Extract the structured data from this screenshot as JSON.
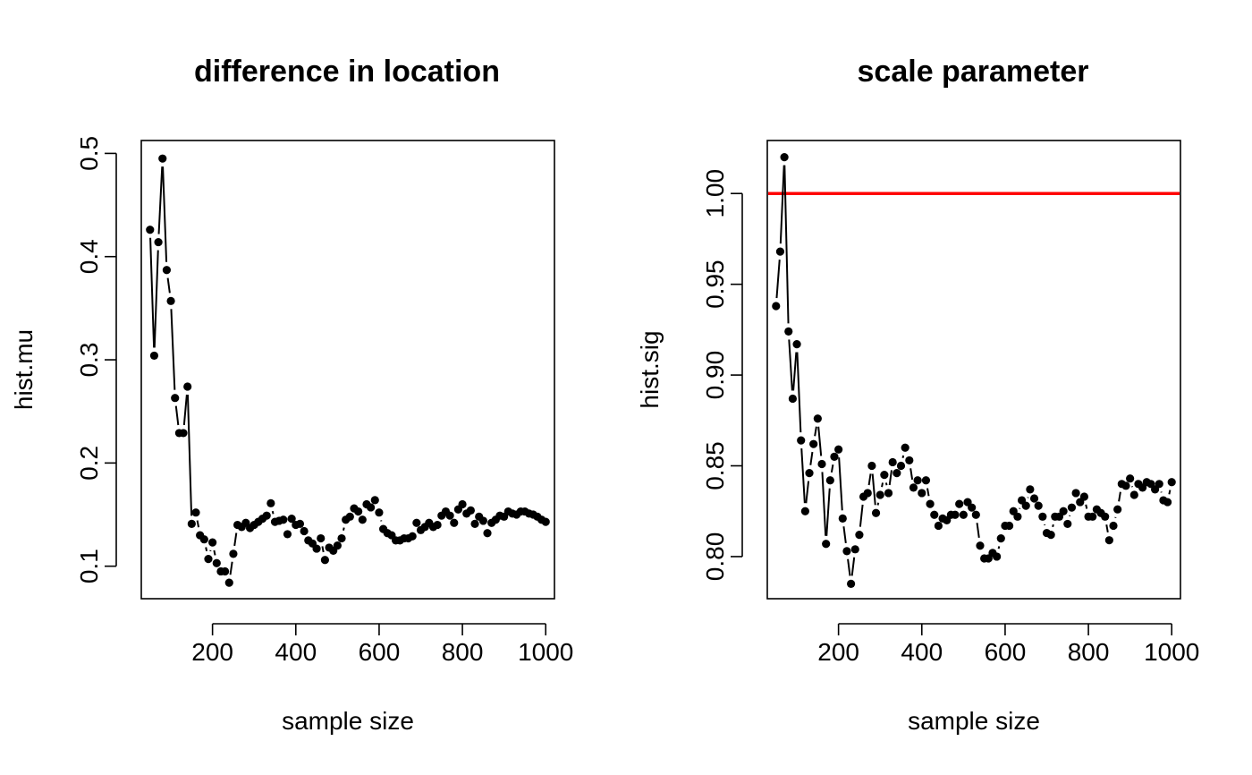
{
  "chart_data": [
    {
      "type": "line",
      "title": "difference in location",
      "xlabel": "sample size",
      "ylabel": "hist.mu",
      "xlim": [
        29,
        1021
      ],
      "ylim": [
        0.0685,
        0.5125
      ],
      "xticks": [
        200,
        400,
        600,
        800,
        1000
      ],
      "yticks": [
        0.1,
        0.2,
        0.3,
        0.4,
        0.5
      ],
      "xtick_labels": [
        "200",
        "400",
        "600",
        "800",
        "1000"
      ],
      "ytick_labels": [
        "0.1",
        "0.2",
        "0.3",
        "0.4",
        "0.5"
      ],
      "grid": false,
      "legend": "none",
      "line_style": "both points and lines",
      "color": "#000000",
      "reference_line": null,
      "series": [
        {
          "x": [
            50,
            60,
            70,
            80,
            90,
            100,
            110,
            120,
            130,
            140,
            150,
            160,
            170,
            180,
            190,
            200,
            210,
            220,
            230,
            240,
            250,
            260,
            270,
            280,
            290,
            300,
            310,
            320,
            330,
            340,
            350,
            360,
            370,
            380,
            390,
            400,
            410,
            420,
            430,
            440,
            450,
            460,
            470,
            480,
            490,
            500,
            510,
            520,
            530,
            540,
            550,
            560,
            570,
            580,
            590,
            600,
            610,
            620,
            630,
            640,
            650,
            660,
            670,
            680,
            690,
            700,
            710,
            720,
            730,
            740,
            750,
            760,
            770,
            780,
            790,
            800,
            810,
            820,
            830,
            840,
            850,
            860,
            870,
            880,
            890,
            900,
            910,
            920,
            930,
            940,
            950,
            960,
            970,
            980,
            990,
            1000
          ],
          "y": [
            0.426,
            0.304,
            0.414,
            0.495,
            0.387,
            0.357,
            0.263,
            0.229,
            0.229,
            0.274,
            0.141,
            0.152,
            0.13,
            0.126,
            0.107,
            0.123,
            0.103,
            0.095,
            0.095,
            0.084,
            0.112,
            0.14,
            0.138,
            0.142,
            0.137,
            0.14,
            0.143,
            0.146,
            0.149,
            0.161,
            0.143,
            0.144,
            0.145,
            0.131,
            0.146,
            0.14,
            0.141,
            0.134,
            0.125,
            0.122,
            0.117,
            0.127,
            0.106,
            0.118,
            0.115,
            0.12,
            0.127,
            0.145,
            0.148,
            0.156,
            0.153,
            0.145,
            0.16,
            0.157,
            0.164,
            0.152,
            0.136,
            0.132,
            0.13,
            0.125,
            0.125,
            0.127,
            0.127,
            0.129,
            0.142,
            0.135,
            0.138,
            0.142,
            0.138,
            0.14,
            0.149,
            0.153,
            0.149,
            0.142,
            0.155,
            0.16,
            0.151,
            0.154,
            0.141,
            0.148,
            0.144,
            0.132,
            0.142,
            0.145,
            0.149,
            0.148,
            0.153,
            0.151,
            0.15,
            0.153,
            0.153,
            0.151,
            0.15,
            0.148,
            0.145,
            0.143
          ]
        }
      ]
    },
    {
      "type": "line",
      "title": "scale parameter",
      "xlabel": "sample size",
      "ylabel": "hist.sig",
      "xlim": [
        29,
        1021
      ],
      "ylim": [
        0.7768,
        1.0292
      ],
      "xticks": [
        200,
        400,
        600,
        800,
        1000
      ],
      "yticks": [
        0.8,
        0.85,
        0.9,
        0.95,
        1.0
      ],
      "xtick_labels": [
        "200",
        "400",
        "600",
        "800",
        "1000"
      ],
      "ytick_labels": [
        "0.80",
        "0.85",
        "0.90",
        "0.95",
        "1.00"
      ],
      "grid": false,
      "legend": "none",
      "line_style": "both points and lines",
      "color": "#000000",
      "reference_line": {
        "y": 1.0,
        "color": "#ff0000"
      },
      "series": [
        {
          "x": [
            50,
            60,
            70,
            80,
            90,
            100,
            110,
            120,
            130,
            140,
            150,
            160,
            170,
            180,
            190,
            200,
            210,
            220,
            230,
            240,
            250,
            260,
            270,
            280,
            290,
            300,
            310,
            320,
            330,
            340,
            350,
            360,
            370,
            380,
            390,
            400,
            410,
            420,
            430,
            440,
            450,
            460,
            470,
            480,
            490,
            500,
            510,
            520,
            530,
            540,
            550,
            560,
            570,
            580,
            590,
            600,
            610,
            620,
            630,
            640,
            650,
            660,
            670,
            680,
            690,
            700,
            710,
            720,
            730,
            740,
            750,
            760,
            770,
            780,
            790,
            800,
            810,
            820,
            830,
            840,
            850,
            860,
            870,
            880,
            890,
            900,
            910,
            920,
            930,
            940,
            950,
            960,
            970,
            980,
            990,
            1000
          ],
          "y": [
            0.938,
            0.968,
            1.02,
            0.924,
            0.887,
            0.917,
            0.864,
            0.825,
            0.846,
            0.862,
            0.876,
            0.851,
            0.807,
            0.842,
            0.855,
            0.859,
            0.821,
            0.803,
            0.785,
            0.804,
            0.812,
            0.833,
            0.835,
            0.85,
            0.824,
            0.834,
            0.845,
            0.835,
            0.852,
            0.846,
            0.85,
            0.86,
            0.853,
            0.838,
            0.842,
            0.835,
            0.842,
            0.829,
            0.823,
            0.817,
            0.821,
            0.82,
            0.823,
            0.823,
            0.829,
            0.823,
            0.83,
            0.827,
            0.823,
            0.806,
            0.799,
            0.799,
            0.802,
            0.8,
            0.81,
            0.817,
            0.817,
            0.825,
            0.822,
            0.831,
            0.828,
            0.837,
            0.832,
            0.828,
            0.822,
            0.813,
            0.812,
            0.822,
            0.822,
            0.825,
            0.818,
            0.827,
            0.835,
            0.83,
            0.833,
            0.822,
            0.822,
            0.826,
            0.824,
            0.822,
            0.809,
            0.817,
            0.826,
            0.84,
            0.839,
            0.843,
            0.834,
            0.84,
            0.838,
            0.841,
            0.84,
            0.837,
            0.84,
            0.831,
            0.83,
            0.841
          ]
        }
      ]
    }
  ]
}
